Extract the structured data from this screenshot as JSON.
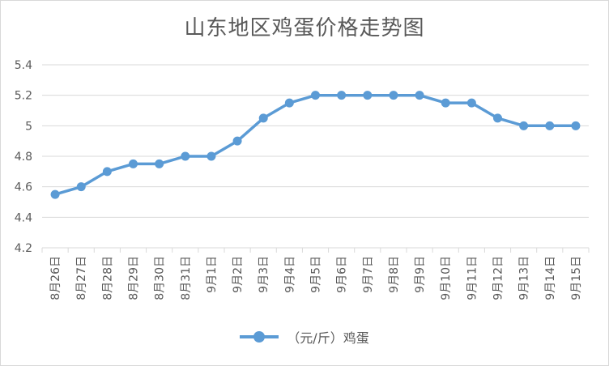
{
  "chart_data": {
    "type": "line",
    "title": "山东地区鸡蛋价格走势图",
    "xlabel": "",
    "ylabel": "",
    "categories": [
      "8月26日",
      "8月27日",
      "8月28日",
      "8月29日",
      "8月30日",
      "8月31日",
      "9月1日",
      "9月2日",
      "9月3日",
      "9月4日",
      "9月5日",
      "9月6日",
      "9月7日",
      "9月8日",
      "9月9日",
      "9月10日",
      "9月11日",
      "9月12日",
      "9月13日",
      "9月14日",
      "9月15日"
    ],
    "series": [
      {
        "name": "（元/斤）鸡蛋",
        "values": [
          4.55,
          4.6,
          4.7,
          4.75,
          4.75,
          4.8,
          4.8,
          4.9,
          5.05,
          5.15,
          5.2,
          5.2,
          5.2,
          5.2,
          5.2,
          5.15,
          5.15,
          5.05,
          5.0,
          5.0,
          5.0
        ],
        "color": "#5b9bd5"
      }
    ],
    "ylim": [
      4.2,
      5.4
    ],
    "yticks": [
      "4.2",
      "4.4",
      "4.6",
      "4.8",
      "5",
      "5.2",
      "5.4"
    ],
    "grid": true,
    "legend_position": "bottom"
  }
}
